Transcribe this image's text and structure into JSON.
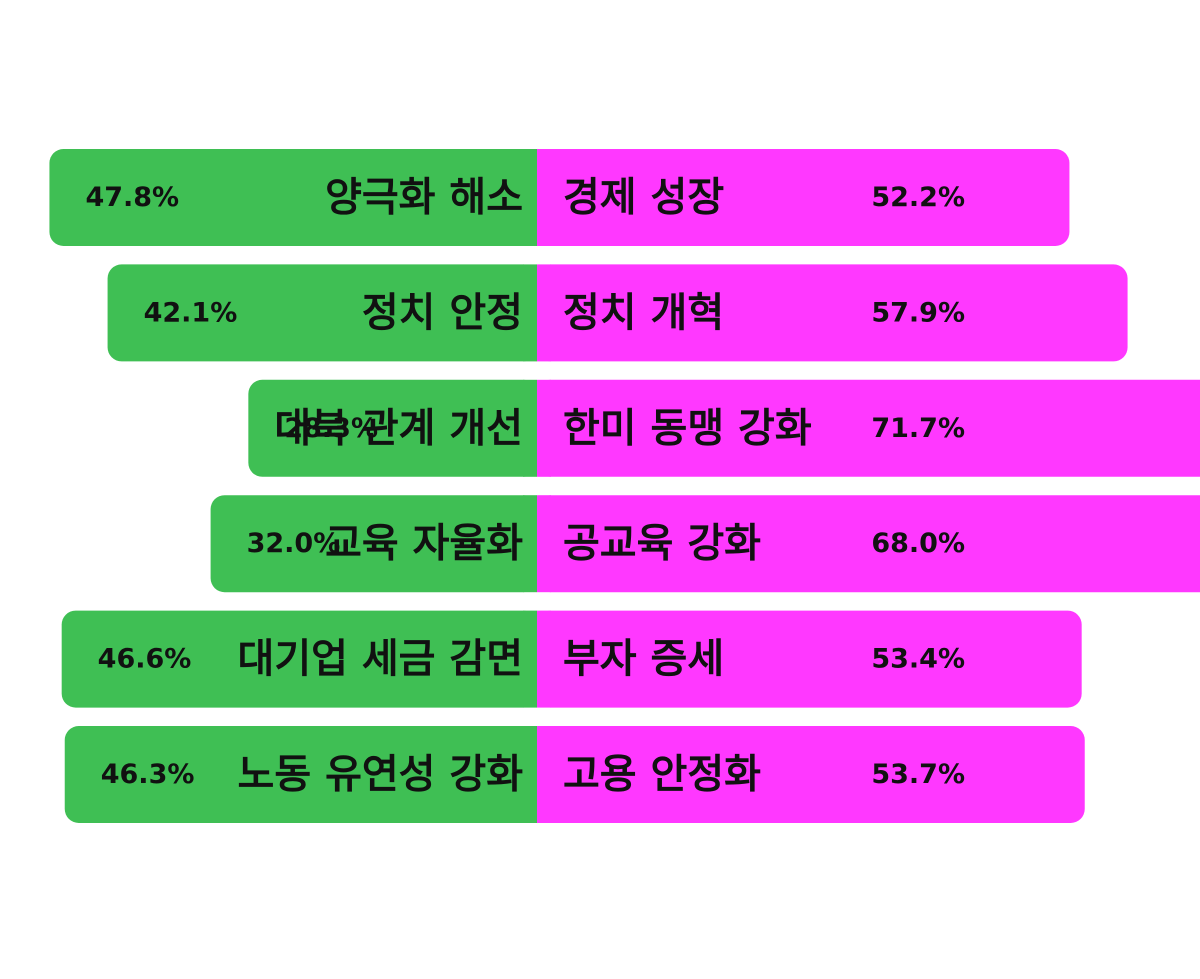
{
  "chart_data": {
    "type": "bar",
    "orientation": "horizontal-diverging",
    "colors": {
      "left": "#3fbf54",
      "right": "#ff38ff",
      "text": "#111111"
    },
    "rows": [
      {
        "left_label": "양극화 해소",
        "left_value": 47.8,
        "left_text": "47.8%",
        "right_label": "경제 성장",
        "right_value": 52.2,
        "right_text": "52.2%"
      },
      {
        "left_label": "정치 안정",
        "left_value": 42.1,
        "left_text": "42.1%",
        "right_label": "정치 개혁",
        "right_value": 57.9,
        "right_text": "57.9%"
      },
      {
        "left_label": "대북 관계 개선",
        "left_value": 28.3,
        "left_text": "28.3%",
        "right_label": "한미 동맹 강화",
        "right_value": 71.7,
        "right_text": "71.7%"
      },
      {
        "left_label": "교육 자율화",
        "left_value": 32.0,
        "left_text": "32.0%",
        "right_label": "공교육 강화",
        "right_value": 68.0,
        "right_text": "68.0%"
      },
      {
        "left_label": "대기업 세금 감면",
        "left_value": 46.6,
        "left_text": "46.6%",
        "right_label": "부자 증세",
        "right_value": 53.4,
        "right_text": "53.4%"
      },
      {
        "left_label": "노동 유연성 강화",
        "left_value": 46.3,
        "left_text": "46.3%",
        "right_label": "고용 안정화",
        "right_value": 53.7,
        "right_text": "53.7%"
      }
    ]
  }
}
